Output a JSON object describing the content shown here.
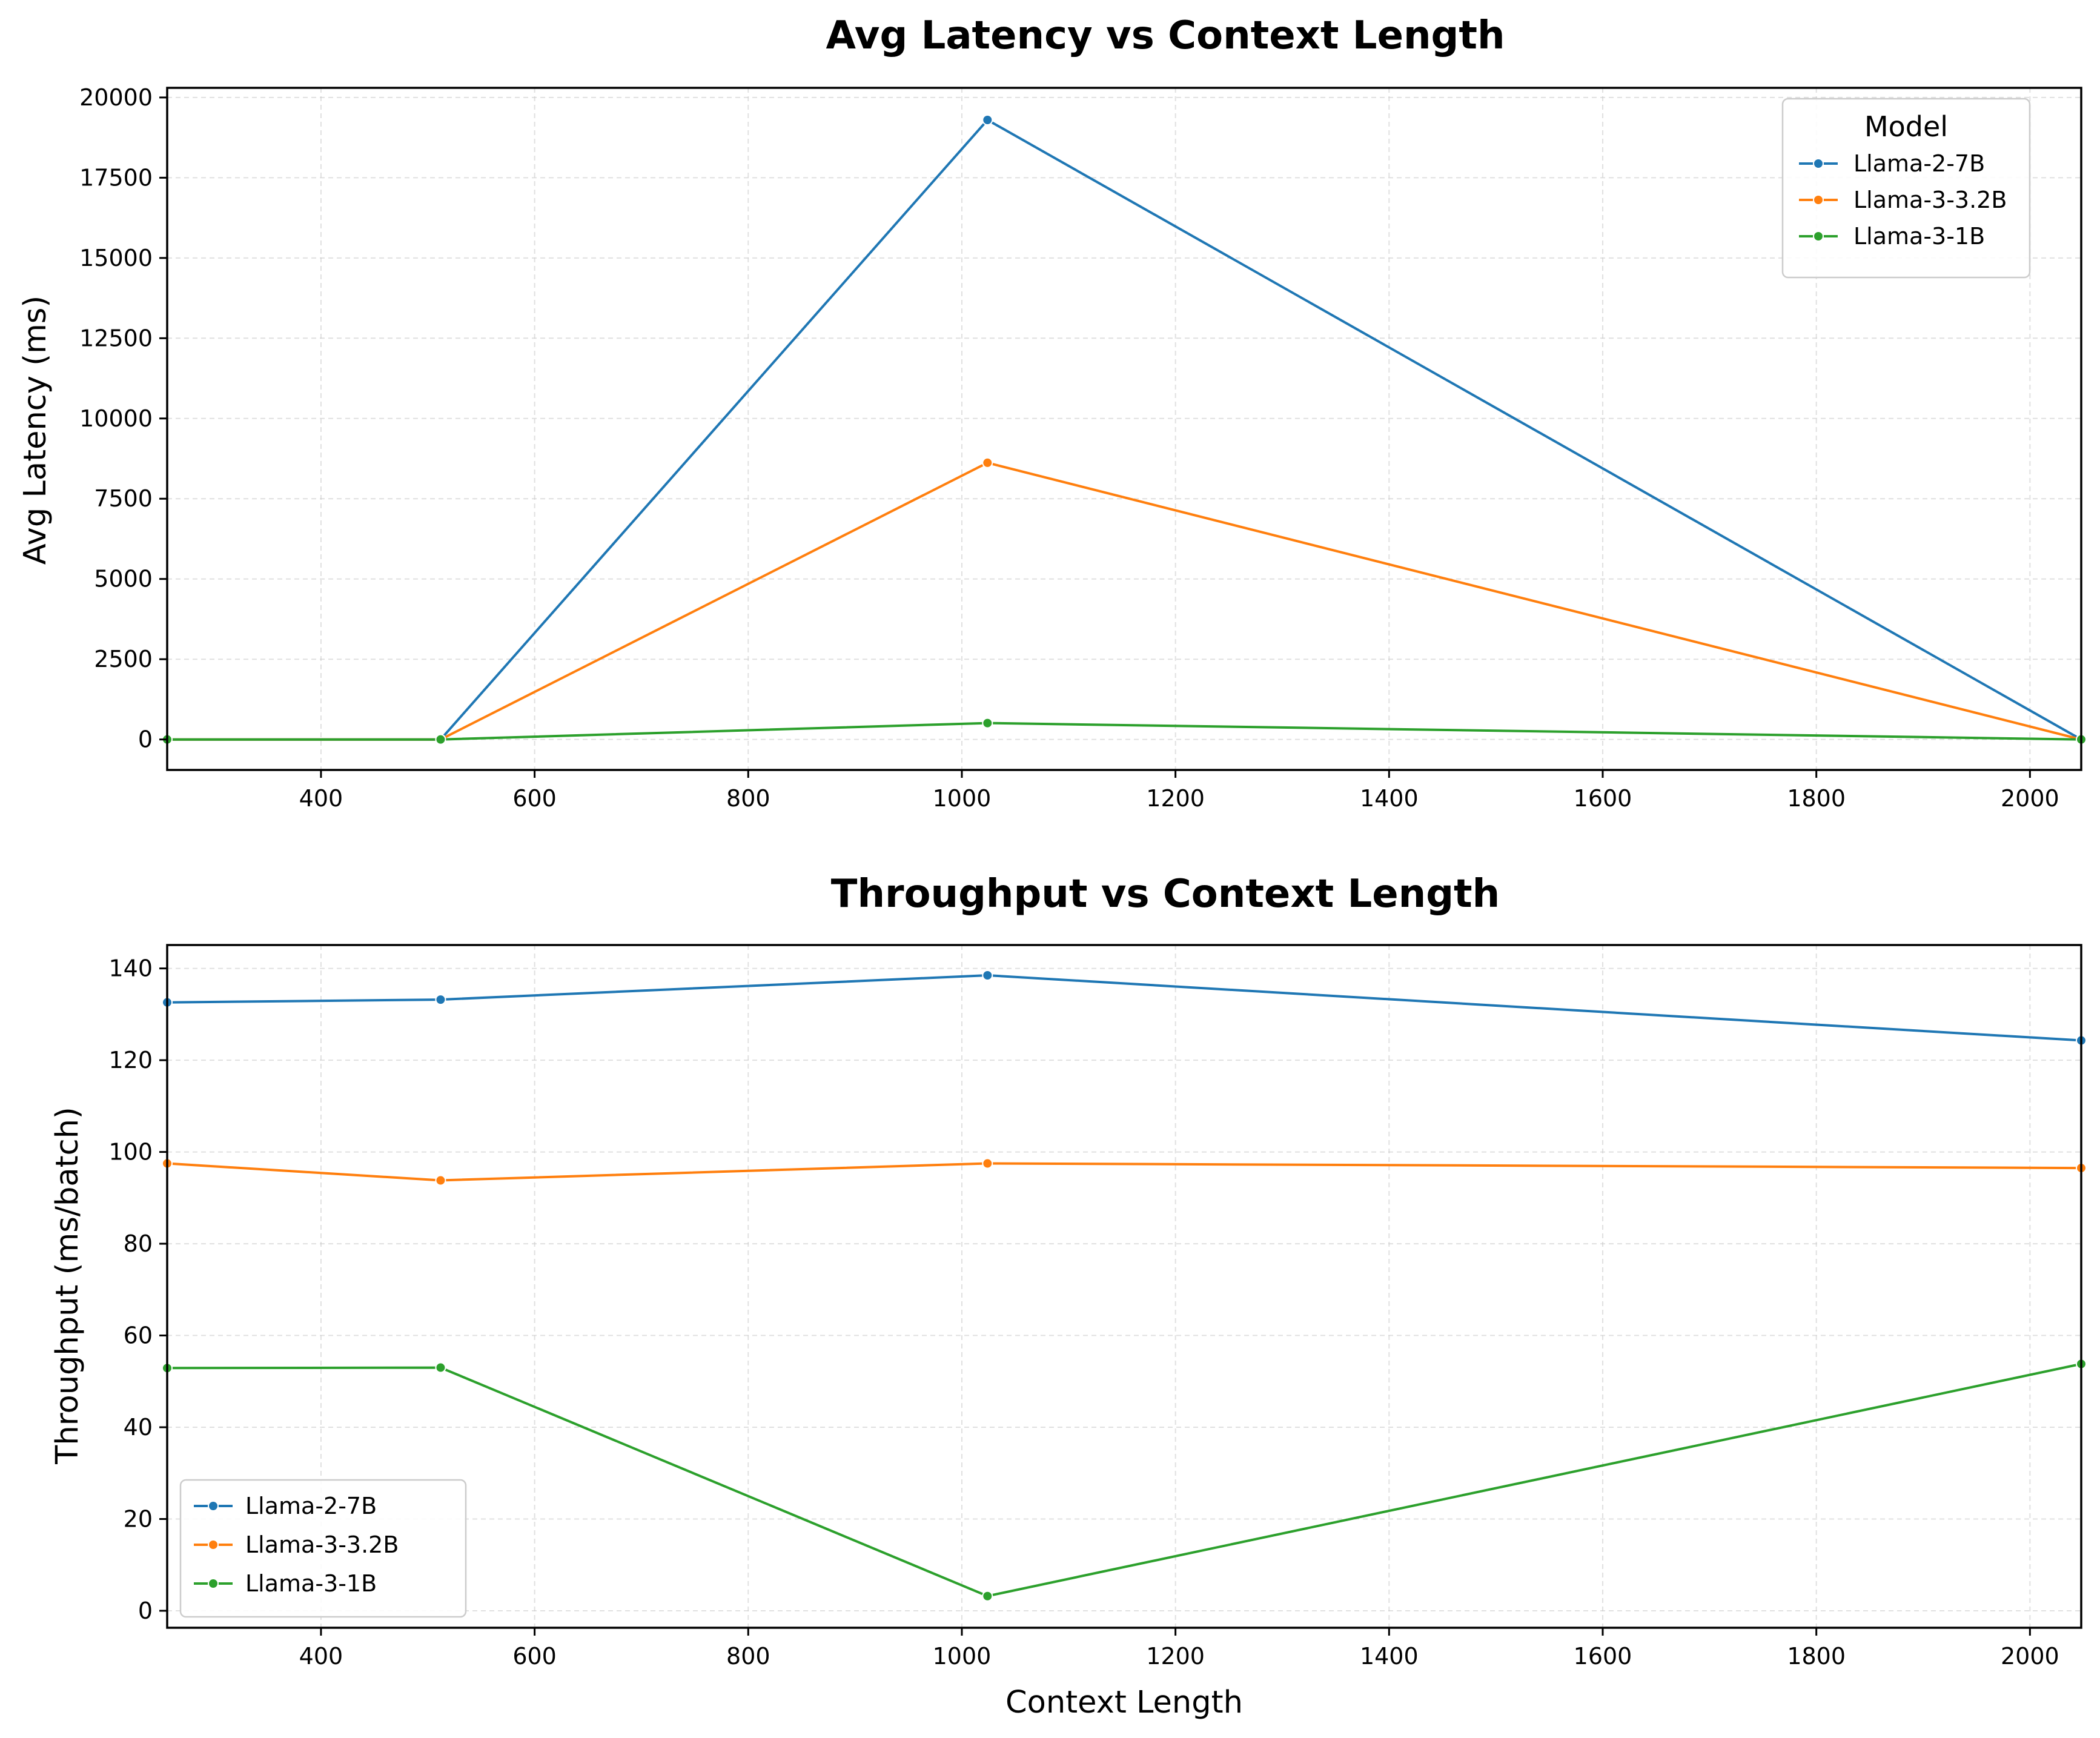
{
  "chart_data": [
    {
      "type": "line",
      "title": "Avg Latency vs Context Length",
      "xlabel": "",
      "ylabel": "Avg Latency (ms)",
      "xlim": [
        256,
        2048
      ],
      "ylim": [
        -950,
        20300
      ],
      "x_ticks": [
        400,
        600,
        800,
        1000,
        1200,
        1400,
        1600,
        1800,
        2000
      ],
      "y_ticks": [
        0,
        2500,
        5000,
        7500,
        10000,
        12500,
        15000,
        17500,
        20000
      ],
      "x": [
        256,
        512,
        1024,
        2048
      ],
      "grid": true,
      "legend": {
        "title": "Model",
        "position": "top-right"
      },
      "series": [
        {
          "name": "Llama-2-7B",
          "color": "#1f77b4",
          "values": [
            0,
            0,
            19300,
            0
          ]
        },
        {
          "name": "Llama-3-3.2B",
          "color": "#ff7f0e",
          "values": [
            0,
            0,
            8620,
            0
          ]
        },
        {
          "name": "Llama-3-1B",
          "color": "#2ca02c",
          "values": [
            0,
            0,
            510,
            0
          ]
        }
      ]
    },
    {
      "type": "line",
      "title": "Throughput vs Context Length",
      "xlabel": "Context Length",
      "ylabel": "Throughput (ms/batch)",
      "xlim": [
        256,
        2048
      ],
      "ylim": [
        -3.7,
        145.1
      ],
      "x_ticks": [
        400,
        600,
        800,
        1000,
        1200,
        1400,
        1600,
        1800,
        2000
      ],
      "y_ticks": [
        0,
        20,
        40,
        60,
        80,
        100,
        120,
        140
      ],
      "x": [
        256,
        512,
        1024,
        2048
      ],
      "grid": true,
      "legend": {
        "title": "",
        "position": "bottom-left"
      },
      "series": [
        {
          "name": "Llama-2-7B",
          "color": "#1f77b4",
          "values": [
            132.6,
            133.2,
            138.5,
            124.3
          ]
        },
        {
          "name": "Llama-3-3.2B",
          "color": "#ff7f0e",
          "values": [
            97.5,
            93.8,
            97.5,
            96.5
          ]
        },
        {
          "name": "Llama-3-1B",
          "color": "#2ca02c",
          "values": [
            52.9,
            53.0,
            3.2,
            53.8
          ]
        }
      ]
    }
  ]
}
